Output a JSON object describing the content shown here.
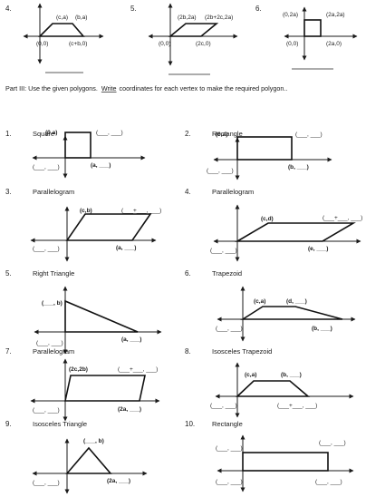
{
  "top_row": [
    {
      "number": "4.",
      "labels": {
        "tl": "(c,a)",
        "tr": "(b,a)",
        "bl": "(0,0)",
        "br": "(c+b,0)"
      }
    },
    {
      "number": "5.",
      "labels": {
        "tl": "(2b,2a)",
        "tr": "(2b+2c,2a)",
        "bl": "(0,0)",
        "br": "(2c,0)"
      }
    },
    {
      "number": "6.",
      "labels": {
        "tl": "(0,2a)",
        "tr": "(2a,2a)",
        "bl": "(0,0)",
        "br": "(2a,0)"
      }
    }
  ],
  "part3": {
    "heading": "Part III:  Use the given polygons.",
    "write_word": "Write",
    "heading_rest": "coordinates for each vertex to make the required polygon.."
  },
  "problems": [
    {
      "number": "1.",
      "title": "Square",
      "labels": [
        "(0,a)",
        "(___, ___)",
        "(___, ___)",
        "(a, ___)"
      ]
    },
    {
      "number": "2.",
      "title": "Rectangle",
      "labels": [
        "(0,a)",
        "(___, ___)",
        "(___, ___)",
        "(b, ___)"
      ]
    },
    {
      "number": "3.",
      "title": "Parallelogram",
      "labels": [
        "(c,b)",
        "(___+___, ___)",
        "(___, ___)",
        "(a, ___)"
      ]
    },
    {
      "number": "4.",
      "title": "Parallelogram",
      "labels": [
        "(c,d)",
        "(___+___, ___)",
        "(___, ___)",
        "(e, ___)"
      ]
    },
    {
      "number": "5.",
      "title": "Right Triangle",
      "labels": [
        "(___, b)",
        "(___, ___)",
        "(a, ___)"
      ]
    },
    {
      "number": "6.",
      "title": "Trapezoid",
      "labels": [
        "(c,a)",
        "(d, ___)",
        "(___, ___)",
        "(b, ___)"
      ]
    },
    {
      "number": "7.",
      "title": "Parallelogram",
      "labels": [
        "(2c,2b)",
        "(___+___, ___)",
        "(___, ___)",
        "(2a, ___)"
      ]
    },
    {
      "number": "8.",
      "title": "Isosceles Trapezoid",
      "labels": [
        "(c,a)",
        "(b, ___)",
        "(___, ___)",
        "(___+___, ___)"
      ]
    },
    {
      "number": "9.",
      "title": "Isosceles Triangle",
      "labels": [
        "(___, b)",
        "(___, ___)",
        "(2a, ___)"
      ]
    },
    {
      "number": "10.",
      "title": "Rectangle",
      "labels": [
        "(___, ___)",
        "(___, ___)",
        "(___, ___)",
        "(___, ___)"
      ]
    }
  ]
}
